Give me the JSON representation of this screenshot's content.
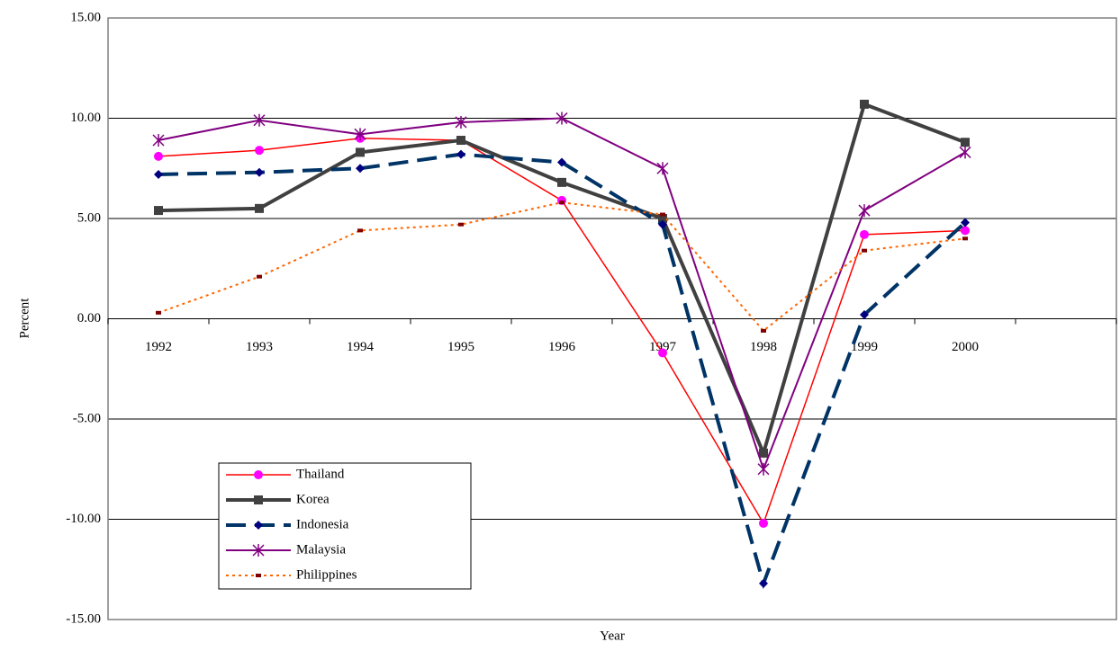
{
  "chart_data": {
    "type": "line",
    "x_label": "Year",
    "y_label": "Percent",
    "categories": [
      "1992",
      "1993",
      "1994",
      "1995",
      "1996",
      "1997",
      "1998",
      "1999",
      "2000",
      null
    ],
    "series": [
      {
        "name": "Thailand",
        "color": "#ff0000",
        "values": [
          8.1,
          8.4,
          9.0,
          8.9,
          5.9,
          -1.7,
          -10.2,
          4.2,
          4.4,
          null
        ]
      },
      {
        "name": "Korea",
        "color": "#404040",
        "values": [
          5.4,
          5.5,
          8.3,
          8.9,
          6.8,
          5.0,
          -6.7,
          10.7,
          8.8,
          null
        ]
      },
      {
        "name": "Indonesia",
        "color": "#003366",
        "values": [
          7.2,
          7.3,
          7.5,
          8.2,
          7.8,
          4.7,
          -13.2,
          0.2,
          4.8,
          null
        ]
      },
      {
        "name": "Malaysia",
        "color": "#800080",
        "values": [
          8.9,
          9.9,
          9.2,
          9.8,
          10.0,
          7.5,
          -7.5,
          5.4,
          8.3,
          null
        ]
      },
      {
        "name": "Philippines",
        "color": "#ff6600",
        "values": [
          0.3,
          2.1,
          4.4,
          4.7,
          5.8,
          5.2,
          -0.6,
          3.4,
          4.0,
          null
        ]
      }
    ],
    "ylim": [
      -15,
      15
    ],
    "yticks": [
      {
        "value": -15,
        "label": "-15.00"
      },
      {
        "value": -10,
        "label": "-10.00"
      },
      {
        "value": -5,
        "label": "-5.00"
      },
      {
        "value": 0,
        "label": "0.00"
      },
      {
        "value": 5,
        "label": "5.00"
      },
      {
        "value": 10,
        "label": "10.00"
      },
      {
        "value": 15,
        "label": "15.00"
      }
    ],
    "grid": true,
    "legend": "lower-left"
  }
}
